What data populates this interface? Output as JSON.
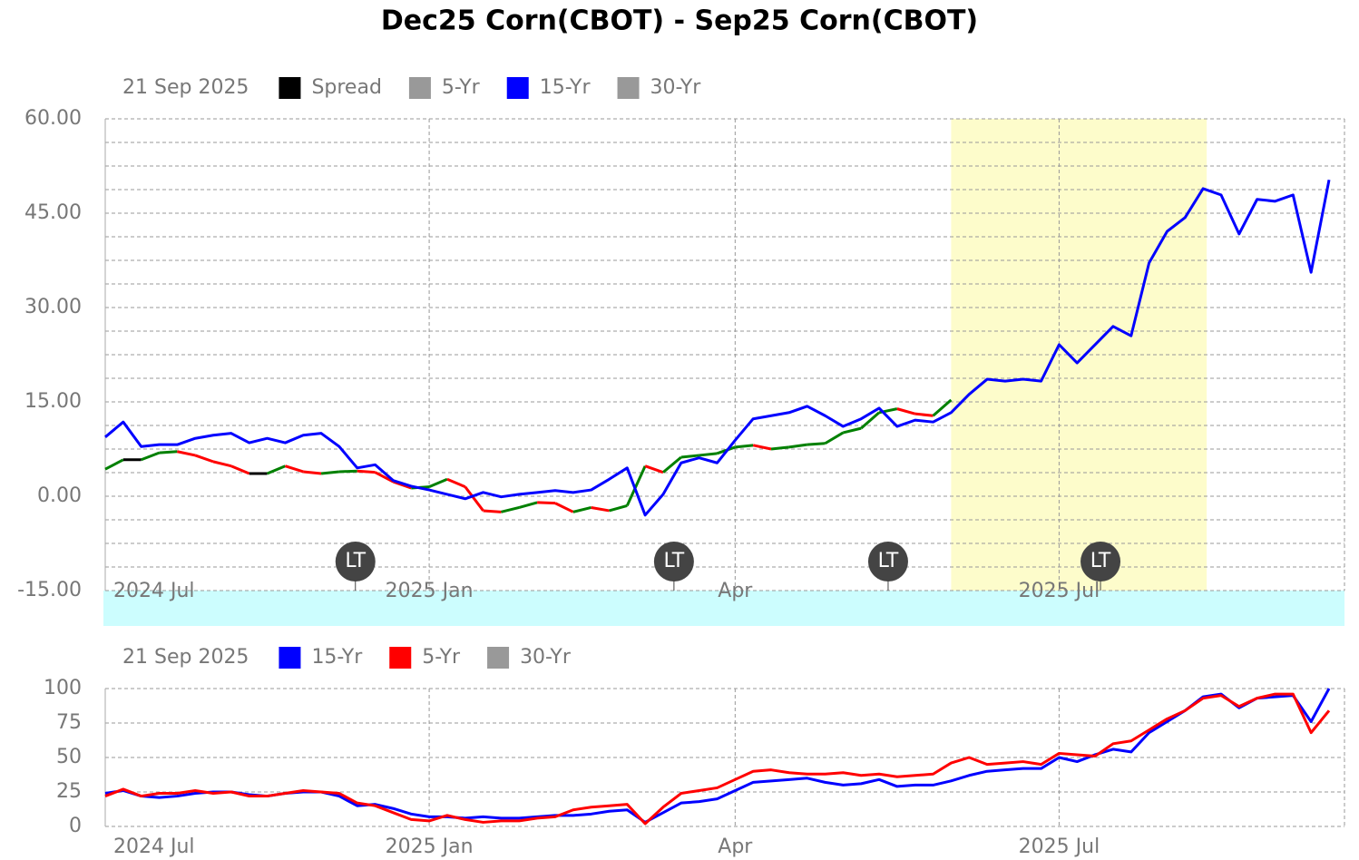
{
  "chart_data": [
    {
      "type": "line",
      "title": "Dec25 Corn(CBOT) - Sep25 Corn(CBOT)",
      "date_label": "21 Sep 2025",
      "categories": [
        "2024 Jul",
        null,
        null,
        null,
        null,
        null,
        null,
        null,
        null,
        null,
        null,
        null,
        null,
        null,
        null,
        null,
        null,
        null,
        "2025 Jan",
        null,
        null,
        null,
        null,
        null,
        null,
        null,
        null,
        null,
        null,
        null,
        null,
        null,
        null,
        null,
        null,
        "Apr",
        null,
        null,
        null,
        null,
        null,
        null,
        null,
        null,
        null,
        null,
        null,
        null,
        null,
        null,
        null,
        null,
        null,
        "2025 Jul",
        null,
        null,
        null,
        null,
        null,
        null,
        null,
        null,
        null,
        null,
        null,
        null,
        null,
        null,
        null
      ],
      "series": [
        {
          "name": "Spread",
          "color": "#000000",
          "up_color": "#008000",
          "down_color": "#ff0000",
          "values": [
            4.3,
            5.8,
            5.8,
            6.9,
            7.1,
            6.5,
            5.5,
            4.8,
            3.6,
            3.6,
            4.8,
            3.9,
            3.6,
            3.9,
            4.0,
            3.8,
            2.3,
            1.3,
            1.5,
            2.7,
            1.5,
            -2.3,
            -2.5,
            -1.8,
            -1.0,
            -1.1,
            -2.5,
            -1.8,
            -2.3,
            -1.5,
            4.8,
            3.8,
            6.2,
            6.5,
            6.8,
            7.8,
            8.1,
            7.5,
            7.8,
            8.2,
            8.4,
            10.1,
            10.8,
            13.3,
            13.9,
            13.1,
            12.8,
            15.3,
            null,
            null,
            null,
            null,
            null,
            null,
            null,
            null,
            null,
            null,
            null,
            null,
            null,
            null,
            null,
            null,
            null,
            null,
            null,
            null,
            null
          ]
        },
        {
          "name": "5-Yr",
          "color": "#999999"
        },
        {
          "name": "15-Yr",
          "color": "#0000ff",
          "values": [
            9.4,
            11.8,
            7.9,
            8.2,
            8.2,
            9.2,
            9.7,
            10,
            8.5,
            9.2,
            8.5,
            9.7,
            10,
            7.9,
            4.5,
            5,
            2.5,
            1.6,
            1,
            0.3,
            -0.4,
            0.6,
            -0.1,
            0.3,
            0.6,
            0.9,
            0.6,
            1,
            2.7,
            4.5,
            -3,
            0.3,
            5.3,
            6.1,
            5.3,
            8.9,
            12.3,
            12.8,
            13.3,
            14.3,
            12.8,
            11.1,
            12.3,
            14,
            11.1,
            12.1,
            11.8,
            13.3,
            16.2,
            18.6,
            18.3,
            18.6,
            18.3,
            24.1,
            21.2,
            24.1,
            27,
            25.5,
            37.1,
            42.1,
            44.3,
            48.9,
            47.9,
            41.7,
            47.2,
            46.9,
            47.9,
            35.6,
            50.3
          ]
        },
        {
          "name": "30-Yr",
          "color": "#999999"
        }
      ],
      "markers": [
        "LT",
        "LT",
        "LT",
        "LT"
      ],
      "ylim": [
        -15,
        60
      ],
      "yticks": [
        {
          "value": -15,
          "label": "-15.00"
        },
        {
          "value": 0,
          "label": "0.00"
        },
        {
          "value": 15,
          "label": "15.00"
        },
        {
          "value": 30,
          "label": "30.00"
        },
        {
          "value": 45,
          "label": "45.00"
        },
        {
          "value": 60,
          "label": "60.00"
        }
      ],
      "grid": true
    },
    {
      "type": "line",
      "date_label": "21 Sep 2025",
      "categories": [
        "2024 Jul",
        null,
        null,
        null,
        null,
        null,
        null,
        null,
        null,
        null,
        null,
        null,
        null,
        null,
        null,
        null,
        null,
        null,
        "2025 Jan",
        null,
        null,
        null,
        null,
        null,
        null,
        null,
        null,
        null,
        null,
        null,
        null,
        null,
        null,
        null,
        null,
        "Apr",
        null,
        null,
        null,
        null,
        null,
        null,
        null,
        null,
        null,
        null,
        null,
        null,
        null,
        null,
        null,
        null,
        null,
        "2025 Jul",
        null,
        null,
        null,
        null,
        null,
        null,
        null,
        null,
        null,
        null,
        null,
        null,
        null,
        null,
        null
      ],
      "series": [
        {
          "name": "15-Yr",
          "color": "#0000ff",
          "values": [
            24,
            26,
            22,
            21,
            22,
            24,
            25,
            25,
            23,
            22,
            24,
            25,
            25,
            22,
            15,
            16,
            13,
            9,
            7,
            7,
            6,
            7,
            6,
            6,
            7,
            8,
            8,
            9,
            11,
            12,
            3,
            10,
            17,
            18,
            20,
            26,
            32,
            33,
            34,
            35,
            32,
            30,
            31,
            34,
            29,
            30,
            30,
            33,
            37,
            40,
            41,
            42,
            42,
            50,
            47,
            52,
            56,
            54,
            68,
            76,
            84,
            94,
            96,
            86,
            93,
            94,
            95,
            76,
            100
          ]
        },
        {
          "name": "5-Yr",
          "color": "#ff0000",
          "values": [
            22,
            27,
            22,
            24,
            24,
            26,
            24,
            25,
            22,
            22,
            24,
            26,
            25,
            24,
            17,
            15,
            10,
            5,
            4,
            8,
            5,
            3,
            4,
            4,
            6,
            7,
            12,
            14,
            15,
            16,
            2,
            14,
            24,
            26,
            28,
            34,
            40,
            41,
            39,
            38,
            38,
            39,
            37,
            38,
            36,
            37,
            38,
            46,
            50,
            45,
            46,
            47,
            45,
            53,
            52,
            51,
            60,
            62,
            70,
            78,
            84,
            93,
            95,
            87,
            93,
            96,
            96,
            68,
            84
          ]
        },
        {
          "name": "30-Yr",
          "color": "#999999"
        }
      ],
      "ylim": [
        0,
        100
      ],
      "yticks": [
        0,
        25,
        50,
        75,
        100
      ],
      "grid": true
    }
  ]
}
